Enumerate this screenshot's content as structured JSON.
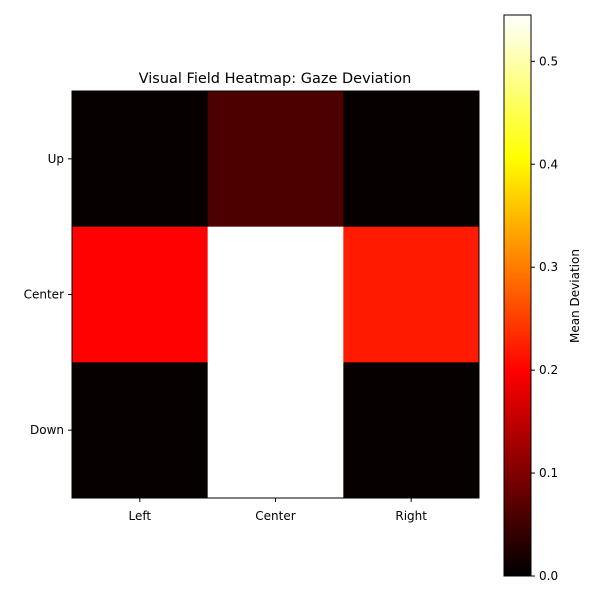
{
  "chart_data": {
    "type": "heatmap",
    "title": "Visual Field Heatmap: Gaze Deviation",
    "x_categories": [
      "Left",
      "Center",
      "Right"
    ],
    "y_categories": [
      "Up",
      "Center",
      "Down"
    ],
    "values": [
      [
        0.005,
        0.06,
        0.005
      ],
      [
        0.2,
        0.545,
        0.22
      ],
      [
        0.005,
        0.545,
        0.005
      ]
    ],
    "colormap": "hot",
    "vmin": 0.0,
    "vmax": 0.545,
    "colorbar": {
      "label": "Mean Deviation",
      "ticks": [
        0.0,
        0.1,
        0.2,
        0.3,
        0.4,
        0.5
      ],
      "tick_labels": [
        "0.0",
        "0.1",
        "0.2",
        "0.3",
        "0.4",
        "0.5"
      ]
    },
    "grid": false
  }
}
